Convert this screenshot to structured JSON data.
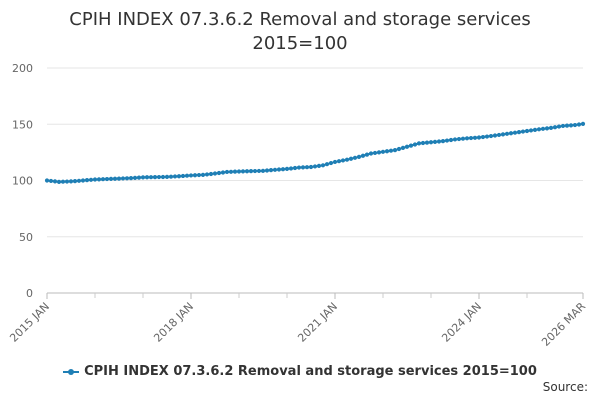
{
  "chart_data": {
    "type": "line",
    "title": "CPIH INDEX 07.3.6.2 Removal and storage services",
    "subtitle": "2015=100",
    "xlabel": "",
    "ylabel": "",
    "ylim": [
      0,
      200
    ],
    "yticks": [
      0,
      50,
      100,
      150,
      200
    ],
    "x_tick_labels": [
      "2015 JAN",
      "2018 JAN",
      "2021 JAN",
      "2024 JAN",
      "2026 MAR"
    ],
    "grid": true,
    "legend_position": "bottom",
    "series_color": "#1f7fb5",
    "series": [
      {
        "name": "CPIH INDEX 07.3.6.2 Removal and storage services 2015=100",
        "points": [
          [
            "2015-01",
            100.0
          ],
          [
            "2015-04",
            98.8
          ],
          [
            "2015-07",
            99.2
          ],
          [
            "2015-10",
            100.0
          ],
          [
            "2016-01",
            100.9
          ],
          [
            "2016-04",
            101.3
          ],
          [
            "2016-07",
            101.7
          ],
          [
            "2016-10",
            102.1
          ],
          [
            "2017-01",
            102.8
          ],
          [
            "2017-04",
            103.0
          ],
          [
            "2017-07",
            103.2
          ],
          [
            "2017-10",
            103.8
          ],
          [
            "2018-01",
            104.5
          ],
          [
            "2018-04",
            105.0
          ],
          [
            "2018-07",
            106.2
          ],
          [
            "2018-10",
            107.6
          ],
          [
            "2019-01",
            108.0
          ],
          [
            "2019-04",
            108.3
          ],
          [
            "2019-07",
            108.6
          ],
          [
            "2019-10",
            109.5
          ],
          [
            "2020-01",
            110.3
          ],
          [
            "2020-04",
            111.5
          ],
          [
            "2020-07",
            112.0
          ],
          [
            "2020-10",
            113.5
          ],
          [
            "2021-01",
            116.5
          ],
          [
            "2021-04",
            118.5
          ],
          [
            "2021-07",
            121.0
          ],
          [
            "2021-10",
            124.0
          ],
          [
            "2022-01",
            125.5
          ],
          [
            "2022-04",
            127.0
          ],
          [
            "2022-07",
            130.0
          ],
          [
            "2022-10",
            133.0
          ],
          [
            "2023-01",
            134.0
          ],
          [
            "2023-04",
            135.0
          ],
          [
            "2023-07",
            136.5
          ],
          [
            "2023-10",
            137.5
          ],
          [
            "2024-01",
            138.2
          ],
          [
            "2024-04",
            139.5
          ],
          [
            "2024-07",
            141.0
          ],
          [
            "2024-10",
            142.5
          ],
          [
            "2025-01",
            144.0
          ],
          [
            "2025-04",
            145.5
          ],
          [
            "2025-07",
            146.8
          ],
          [
            "2025-10",
            148.5
          ],
          [
            "2026-01",
            149.3
          ],
          [
            "2026-03",
            150.3
          ]
        ]
      }
    ]
  },
  "source_label": "Source:"
}
